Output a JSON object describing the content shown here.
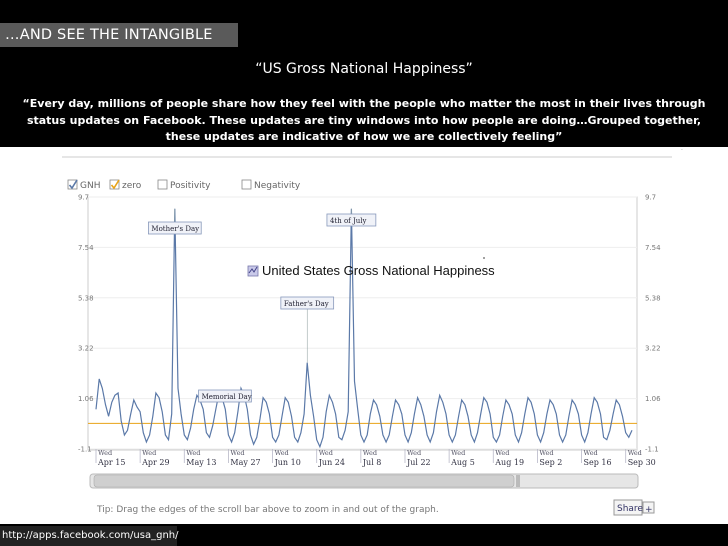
{
  "header": {
    "label": "…AND SEE THE INTANGIBLE"
  },
  "title": "“US Gross National Happiness”",
  "quote": "“Every day, millions of people share how they feel with the people who matter the most in their lives through status updates on Facebook. These updates are tiny windows into how people are doing…Grouped together, these updates are indicative of how we are collectively feeling”",
  "source_url": "http://apps.facebook.com/usa_gnh/",
  "colors": {
    "gnh_line": "#5b79a8",
    "zero_line": "#e8a317",
    "background": "#000000"
  },
  "chart_data": {
    "type": "line",
    "title": "United States Gross National Happiness",
    "legend": [
      {
        "label": "GNH",
        "checked": true
      },
      {
        "label": "zero",
        "checked": true
      },
      {
        "label": "Positivity",
        "checked": false
      },
      {
        "label": "Negativity",
        "checked": false
      }
    ],
    "ylim": [
      -1.1,
      9.7
    ],
    "y_ticks": [
      "9.7",
      "7.54",
      "5.38",
      "3.22",
      "1.06",
      "-1.1"
    ],
    "x_ticks": [
      {
        "day": "Wed",
        "date": "Apr 15"
      },
      {
        "day": "Wed",
        "date": "Apr 29"
      },
      {
        "day": "Wed",
        "date": "May 13"
      },
      {
        "day": "Wed",
        "date": "May 27"
      },
      {
        "day": "Wed",
        "date": "Jun 10"
      },
      {
        "day": "Wed",
        "date": "Jun 24"
      },
      {
        "day": "Wed",
        "date": "Jul 8"
      },
      {
        "day": "Wed",
        "date": "Jul 22"
      },
      {
        "day": "Wed",
        "date": "Aug 5"
      },
      {
        "day": "Wed",
        "date": "Aug 19"
      },
      {
        "day": "Wed",
        "date": "Sep 2"
      },
      {
        "day": "Wed",
        "date": "Sep 16"
      },
      {
        "day": "Wed",
        "date": "Sep 30"
      }
    ],
    "annotations": [
      {
        "label": "Mother's Day",
        "day": 25
      },
      {
        "label": "Memorial Day",
        "day": 39
      },
      {
        "label": "Father's Day",
        "day": 67
      },
      {
        "label": "4th of July",
        "day": 81
      }
    ],
    "zero_value": 0,
    "series": [
      {
        "name": "GNH",
        "values": [
          0.6,
          1.9,
          1.5,
          0.8,
          0.3,
          0.9,
          1.2,
          1.3,
          0.1,
          -0.5,
          -0.3,
          0.4,
          1.0,
          0.7,
          0.5,
          -0.4,
          -0.8,
          -0.5,
          0.3,
          1.3,
          1.1,
          0.5,
          -0.5,
          -0.7,
          0.4,
          9.2,
          1.5,
          0.4,
          -0.5,
          -0.7,
          -0.2,
          0.6,
          1.2,
          1.0,
          0.6,
          -0.4,
          -0.6,
          -0.1,
          0.6,
          1.3,
          1.1,
          0.6,
          -0.5,
          -0.8,
          -0.4,
          0.5,
          1.5,
          1.2,
          0.6,
          -0.5,
          -0.9,
          -0.6,
          0.2,
          1.1,
          0.9,
          0.4,
          -0.6,
          -0.8,
          -0.5,
          0.3,
          1.1,
          0.9,
          0.3,
          -0.6,
          -0.8,
          -0.4,
          0.4,
          2.6,
          1.2,
          0.3,
          -0.7,
          -1.0,
          -0.6,
          0.5,
          1.2,
          0.9,
          0.4,
          -0.6,
          -0.7,
          -0.3,
          0.5,
          9.2,
          1.8,
          0.6,
          -0.5,
          -0.8,
          -0.5,
          0.4,
          1.0,
          0.8,
          0.3,
          -0.5,
          -0.8,
          -0.5,
          0.3,
          1.0,
          0.8,
          0.4,
          -0.5,
          -0.8,
          -0.4,
          0.4,
          1.1,
          0.8,
          0.3,
          -0.5,
          -0.8,
          -0.4,
          0.5,
          1.2,
          0.9,
          0.4,
          -0.5,
          -0.8,
          -0.5,
          0.3,
          1.0,
          0.8,
          0.3,
          -0.5,
          -0.8,
          -0.4,
          0.4,
          1.1,
          0.9,
          0.4,
          -0.6,
          -0.8,
          -0.5,
          0.3,
          1.0,
          0.8,
          0.4,
          -0.5,
          -0.8,
          -0.4,
          0.4,
          1.1,
          0.9,
          0.4,
          -0.5,
          -0.8,
          -0.4,
          0.4,
          1.0,
          0.8,
          0.4,
          -0.5,
          -0.8,
          -0.5,
          0.3,
          1.0,
          0.8,
          0.4,
          -0.5,
          -0.8,
          -0.4,
          0.4,
          1.1,
          0.9,
          0.4,
          -0.6,
          -0.7,
          -0.3,
          0.4,
          1.0,
          0.8,
          0.3,
          -0.4,
          -0.6,
          -0.3
        ]
      }
    ]
  },
  "scroll_tip": "Tip: Drag the edges of the scroll bar above to zoom in and out of the graph.",
  "share": {
    "label": "Share",
    "plus": "+"
  }
}
